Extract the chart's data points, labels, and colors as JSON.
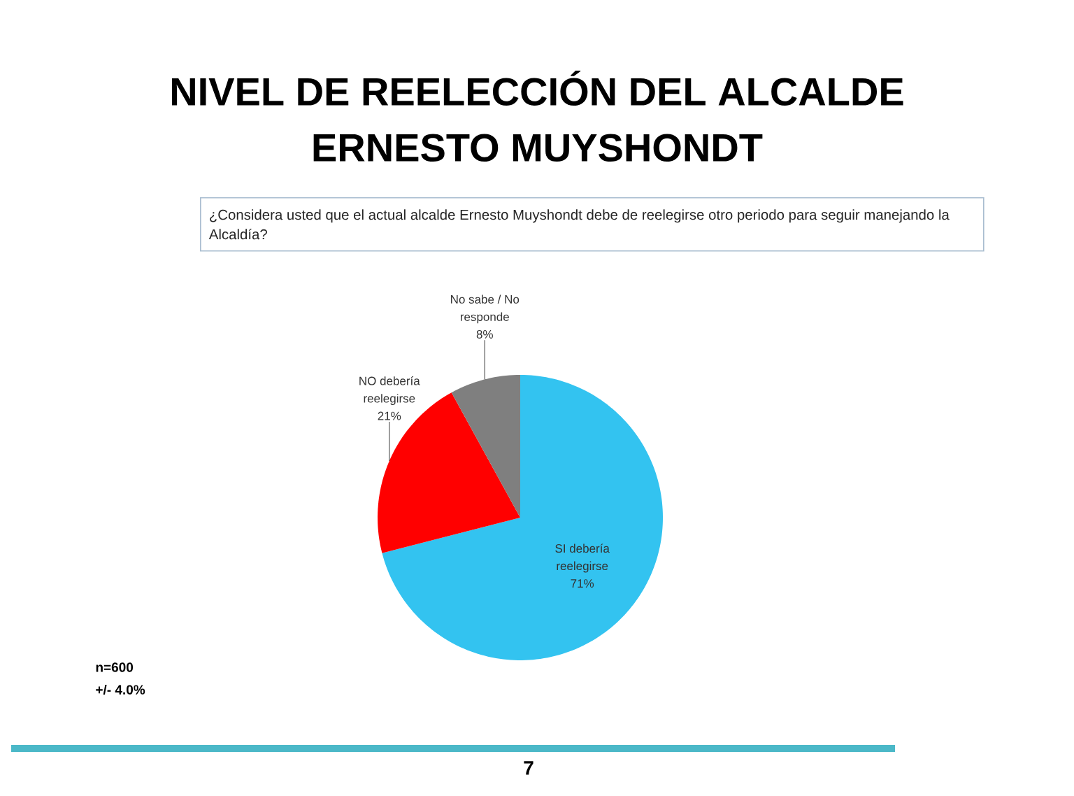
{
  "chart_data": {
    "type": "pie",
    "title": "NIVEL DE REELECCIÓN DEL ALCALDE ERNESTO MUYSHONDT",
    "subtitle": "¿Considera usted que el actual alcalde Ernesto Muyshondt debe de reelegirse otro periodo para seguir manejando la Alcaldía?",
    "categories": [
      "SI debería reelegirse",
      "NO debería reelegirse",
      "No sabe / No responde"
    ],
    "values": [
      71,
      21,
      8
    ],
    "colors": [
      "#33c3f0",
      "#ff0000",
      "#7f7f7f"
    ],
    "value_labels": [
      "71%",
      "21%",
      "8%"
    ],
    "annotations": [
      "n=600",
      "+/- 4.0%",
      "7"
    ]
  }
}
